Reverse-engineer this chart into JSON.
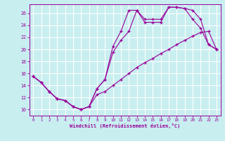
{
  "title": "",
  "xlabel": "Windchill (Refroidissement éolien,°C)",
  "ylabel": "",
  "bg_color": "#c8eef0",
  "line_color": "#990099",
  "grid_color": "#ffffff",
  "xlim": [
    -0.5,
    23.5
  ],
  "ylim": [
    9.0,
    27.5
  ],
  "yticks": [
    10,
    12,
    14,
    16,
    18,
    20,
    22,
    24,
    26
  ],
  "xticks": [
    0,
    1,
    2,
    3,
    4,
    5,
    6,
    7,
    8,
    9,
    10,
    11,
    12,
    13,
    14,
    15,
    16,
    17,
    18,
    19,
    20,
    21,
    22,
    23
  ],
  "line1_x": [
    0,
    1,
    2,
    3,
    4,
    5,
    6,
    7,
    8,
    9,
    10,
    11,
    12,
    13,
    14,
    15,
    16,
    17,
    18,
    19,
    20,
    21,
    22,
    23
  ],
  "line1_y": [
    15.5,
    14.5,
    13.0,
    11.8,
    11.5,
    10.5,
    10.0,
    10.5,
    12.5,
    13.0,
    14.0,
    15.0,
    16.0,
    17.0,
    17.8,
    18.5,
    19.3,
    20.0,
    20.8,
    21.5,
    22.2,
    22.8,
    23.0,
    20.0
  ],
  "line2_x": [
    0,
    1,
    2,
    3,
    4,
    5,
    6,
    7,
    8,
    9,
    10,
    11,
    12,
    13,
    14,
    15,
    16,
    17,
    18,
    19,
    20,
    21,
    22,
    23
  ],
  "line2_y": [
    15.5,
    14.5,
    13.0,
    11.8,
    11.5,
    10.5,
    10.0,
    10.5,
    13.5,
    15.0,
    20.5,
    23.0,
    26.5,
    26.5,
    25.0,
    25.0,
    25.0,
    27.0,
    27.0,
    26.8,
    26.5,
    25.0,
    20.8,
    20.0
  ],
  "line3_x": [
    0,
    1,
    2,
    3,
    4,
    5,
    6,
    7,
    8,
    9,
    10,
    11,
    12,
    13,
    14,
    15,
    16,
    17,
    18,
    19,
    20,
    21,
    22,
    23
  ],
  "line3_y": [
    15.5,
    14.5,
    13.0,
    11.8,
    11.5,
    10.5,
    10.0,
    10.5,
    13.5,
    15.0,
    19.5,
    21.5,
    23.0,
    26.5,
    24.5,
    24.5,
    24.5,
    27.0,
    27.0,
    26.8,
    25.0,
    23.5,
    20.8,
    20.0
  ]
}
